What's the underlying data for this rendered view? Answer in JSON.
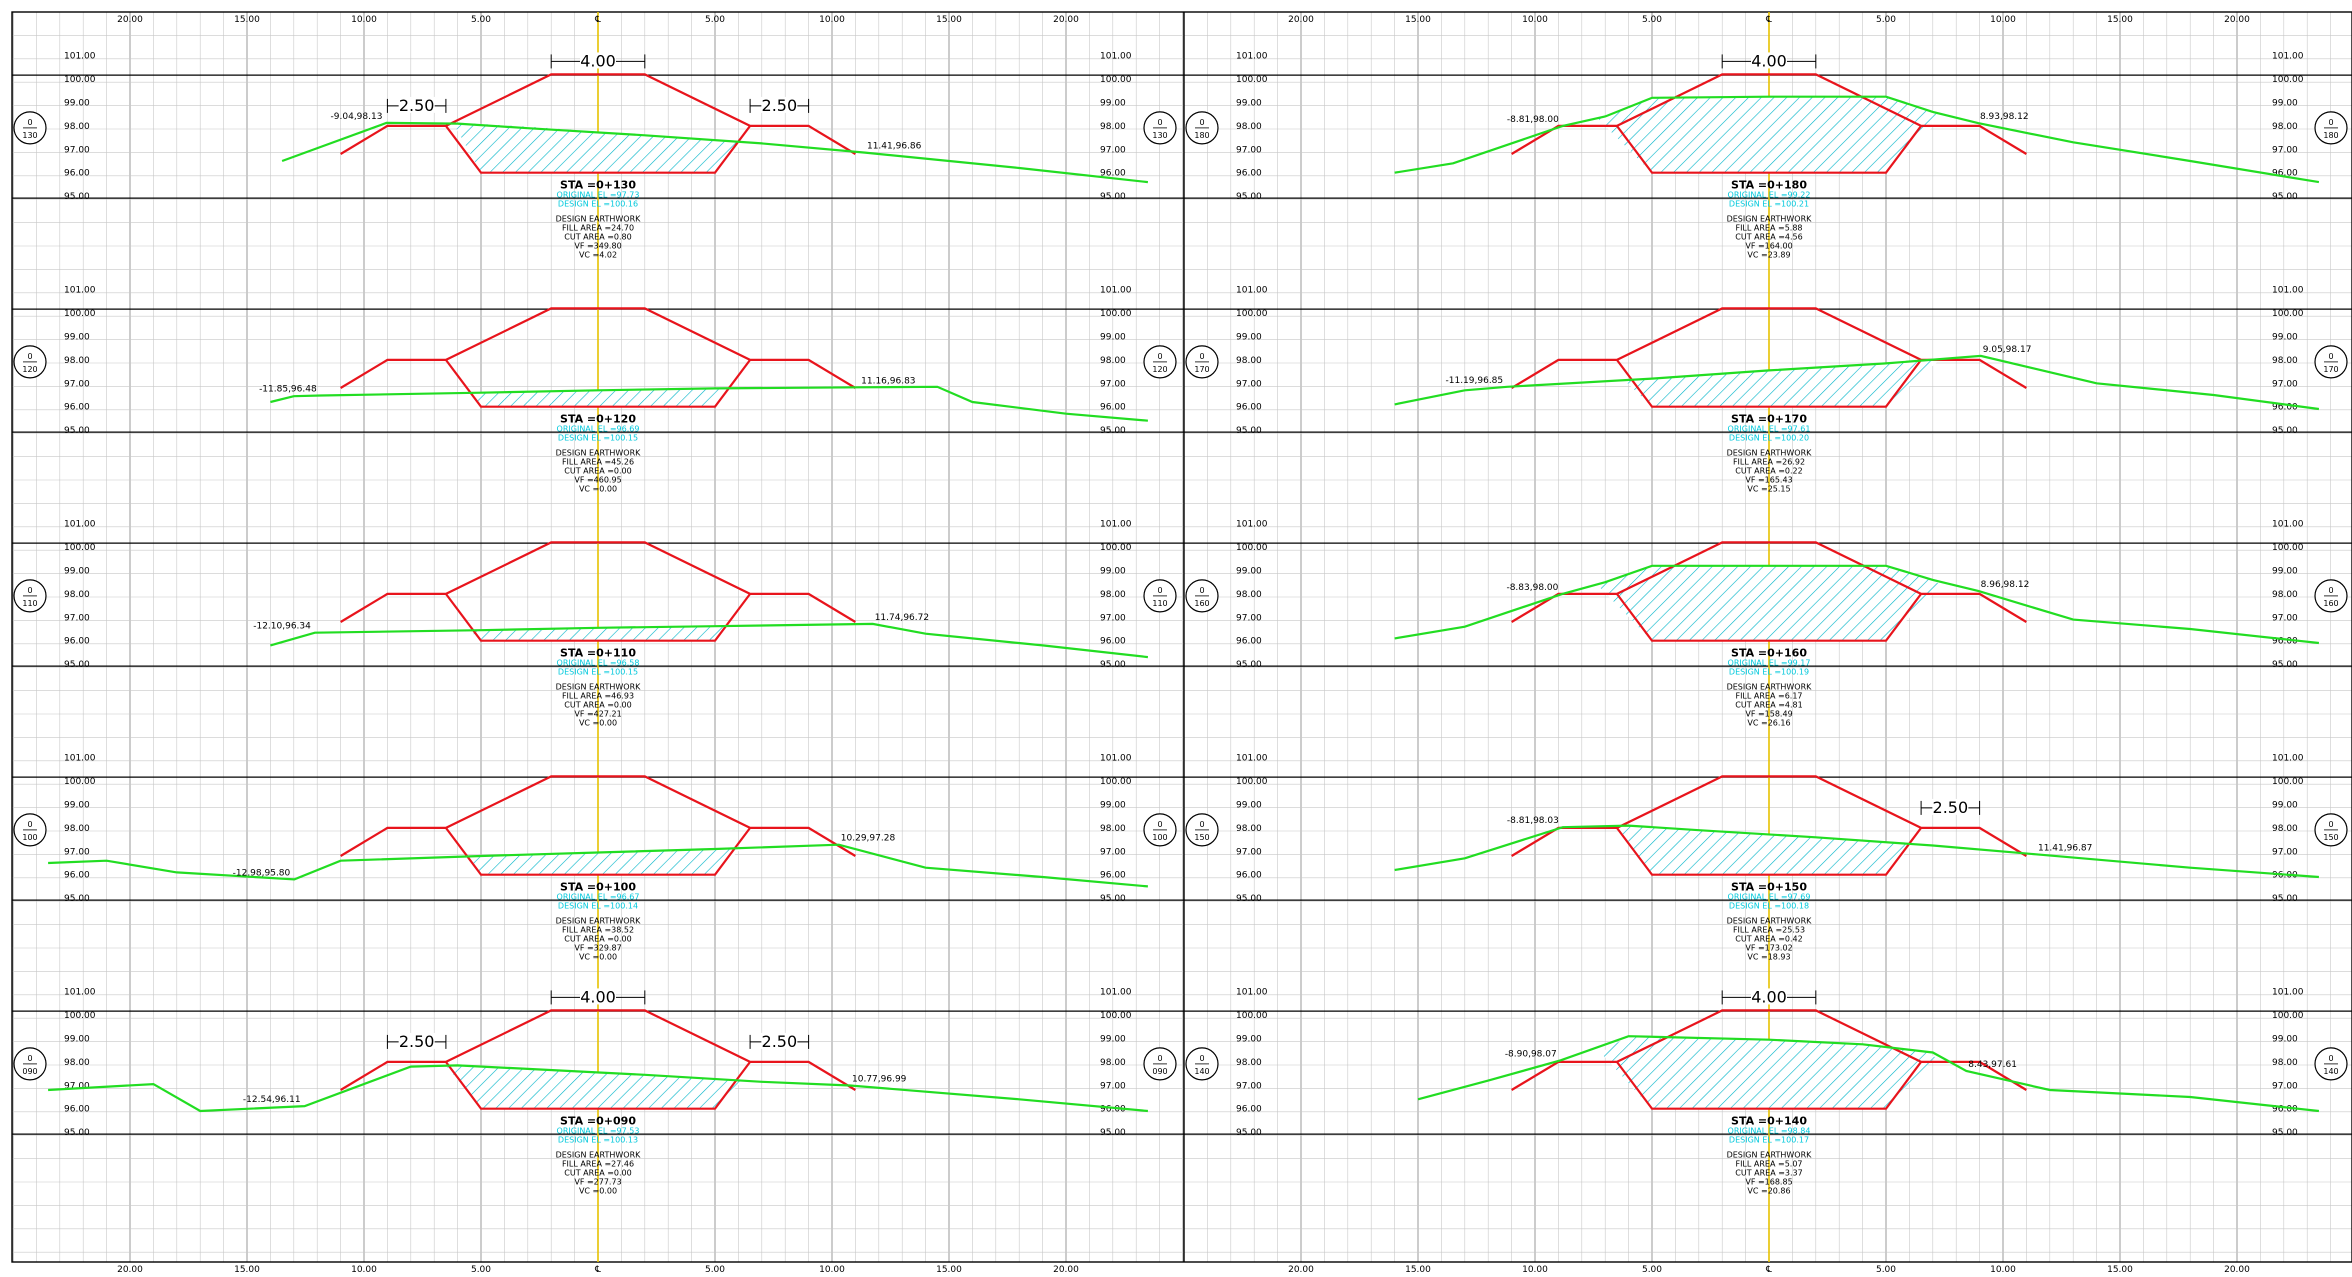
{
  "axis": {
    "x_ticks": [
      {
        "v": -20,
        "label": "20.00"
      },
      {
        "v": -15,
        "label": "15.00"
      },
      {
        "v": -10,
        "label": "10.00"
      },
      {
        "v": -5,
        "label": "5.00"
      },
      {
        "v": 0,
        "label": "℄"
      },
      {
        "v": 5,
        "label": "5.00"
      },
      {
        "v": 10,
        "label": "10.00"
      },
      {
        "v": 15,
        "label": "15.00"
      },
      {
        "v": 20,
        "label": "20.00"
      }
    ],
    "elevation_labels": [
      "101.00",
      "100.00",
      "99.00",
      "98.00",
      "97.00",
      "96.00",
      "95.00"
    ]
  },
  "dimension_labels": {
    "crest": "4.00",
    "berm": "2.50"
  },
  "earthwork_heading": "DESIGN EARTHWORK",
  "colors": {
    "grid": "#c8c8c8",
    "frame": "#000000",
    "design": "#e8141c",
    "ground": "#22dd22",
    "centerline": "#e6c200",
    "hatch": "#00b4c8",
    "elev_text": "#00c8dc"
  },
  "sections": [
    {
      "col": 0,
      "row": 0,
      "sta": "STA =0+130",
      "station_bubble": {
        "top": "0",
        "bottom": "130"
      },
      "original_el": "ORIGINAL EL =97.73",
      "design_el": "DESIGN EL =100.16",
      "fill_area": "FILL AREA =24.70",
      "cut_area": "CUT AREA =0.80",
      "vf": "VF =349.80",
      "vc": "VC =4.02",
      "left_daylight": {
        "text": "-9.04,98.13",
        "x": -9.04,
        "y": 98.13
      },
      "right_daylight": {
        "text": "11.41,96.86",
        "x": 11.41,
        "y": 96.86
      },
      "show_crest_dim": true,
      "show_left_berm_dim": true,
      "show_right_berm_dim": true,
      "ground": [
        [
          -13.5,
          96.5
        ],
        [
          -9.04,
          98.13
        ],
        [
          -6,
          98.1
        ],
        [
          -3,
          97.9
        ],
        [
          2,
          97.6
        ],
        [
          7,
          97.25
        ],
        [
          11.41,
          96.86
        ],
        [
          18,
          96.2
        ],
        [
          23.5,
          95.6
        ]
      ],
      "fill": [
        [
          -6.2,
          98.15
        ],
        [
          -2.6,
          97.95
        ],
        [
          0.5,
          97.7
        ],
        [
          3.2,
          97.5
        ],
        [
          6.2,
          97.3
        ],
        [
          5,
          96
        ],
        [
          -5,
          96
        ]
      ]
    },
    {
      "col": 0,
      "row": 1,
      "sta": "STA =0+120",
      "station_bubble": {
        "top": "0",
        "bottom": "120"
      },
      "original_el": "ORIGINAL EL =96.69",
      "design_el": "DESIGN EL =100.15",
      "fill_area": "FILL AREA =45.26",
      "cut_area": "CUT AREA =0.00",
      "vf": "VF =460.95",
      "vc": "VC =0.00",
      "left_daylight": {
        "text": "-11.85,96.48",
        "x": -11.85,
        "y": 96.48
      },
      "right_daylight": {
        "text": "11.16,96.83",
        "x": 11.16,
        "y": 96.83
      },
      "show_crest_dim": false,
      "show_left_berm_dim": false,
      "show_right_berm_dim": false,
      "ground": [
        [
          -14,
          96.2
        ],
        [
          -13,
          96.45
        ],
        [
          -11.85,
          96.48
        ],
        [
          -5,
          96.6
        ],
        [
          0,
          96.7
        ],
        [
          5,
          96.78
        ],
        [
          11.16,
          96.83
        ],
        [
          14.5,
          96.85
        ],
        [
          16,
          96.2
        ],
        [
          20,
          95.7
        ],
        [
          23.5,
          95.4
        ]
      ],
      "fill": [
        [
          -5.5,
          96.6
        ],
        [
          0,
          96.7
        ],
        [
          5.6,
          96.78
        ],
        [
          5,
          96
        ],
        [
          -5,
          96
        ]
      ]
    },
    {
      "col": 0,
      "row": 2,
      "sta": "STA =0+110",
      "station_bubble": {
        "top": "0",
        "bottom": "110"
      },
      "original_el": "ORIGINAL EL =96.58",
      "design_el": "DESIGN EL =100.15",
      "fill_area": "FILL AREA =46.93",
      "cut_area": "CUT AREA =0.00",
      "vf": "VF =427.21",
      "vc": "VC =0.00",
      "left_daylight": {
        "text": "-12.10,96.34",
        "x": -12.1,
        "y": 96.34
      },
      "right_daylight": {
        "text": "11.74,96.72",
        "x": 11.74,
        "y": 96.72
      },
      "show_crest_dim": false,
      "show_left_berm_dim": false,
      "show_right_berm_dim": false,
      "ground": [
        [
          -14,
          95.8
        ],
        [
          -12.1,
          96.34
        ],
        [
          -5,
          96.45
        ],
        [
          0,
          96.55
        ],
        [
          5,
          96.62
        ],
        [
          11.74,
          96.72
        ],
        [
          14,
          96.3
        ],
        [
          19,
          95.8
        ],
        [
          23.5,
          95.3
        ]
      ],
      "fill": [
        [
          -5.5,
          96.45
        ],
        [
          0,
          96.55
        ],
        [
          5.6,
          96.62
        ],
        [
          5,
          96
        ],
        [
          -5,
          96
        ]
      ]
    },
    {
      "col": 0,
      "row": 3,
      "sta": "STA =0+100",
      "station_bubble": {
        "top": "0",
        "bottom": "100"
      },
      "original_el": "ORIGINAL EL =96.67",
      "design_el": "DESIGN EL =100.14",
      "fill_area": "FILL AREA =38.52",
      "cut_area": "CUT AREA =0.00",
      "vf": "VF =329.87",
      "vc": "VC =0.00",
      "left_daylight": {
        "text": "-12.98,95.80",
        "x": -12.98,
        "y": 95.8
      },
      "right_daylight": {
        "text": "10.29,97.28",
        "x": 10.29,
        "y": 97.28
      },
      "show_crest_dim": false,
      "show_left_berm_dim": false,
      "show_right_berm_dim": false,
      "ground": [
        [
          -23.5,
          96.5
        ],
        [
          -21,
          96.6
        ],
        [
          -18,
          96.1
        ],
        [
          -12.98,
          95.8
        ],
        [
          -11,
          96.6
        ],
        [
          -5,
          96.8
        ],
        [
          0,
          96.95
        ],
        [
          5,
          97.1
        ],
        [
          10.29,
          97.28
        ],
        [
          14,
          96.3
        ],
        [
          19,
          95.9
        ],
        [
          23.5,
          95.5
        ]
      ],
      "fill": [
        [
          -5.5,
          96.78
        ],
        [
          0,
          96.95
        ],
        [
          6.1,
          97.12
        ],
        [
          5,
          96
        ],
        [
          -5,
          96
        ]
      ]
    },
    {
      "col": 0,
      "row": 4,
      "sta": "STA =0+090",
      "station_bubble": {
        "top": "0",
        "bottom": "090"
      },
      "original_el": "ORIGINAL EL =97.53",
      "design_el": "DESIGN EL =100.13",
      "fill_area": "FILL AREA =27.46",
      "cut_area": "CUT AREA =0.00",
      "vf": "VF =277.73",
      "vc": "VC =0.00",
      "left_daylight": {
        "text": "-12.54,96.11",
        "x": -12.54,
        "y": 96.11
      },
      "right_daylight": {
        "text": "10.77,96.99",
        "x": 10.77,
        "y": 96.99
      },
      "show_crest_dim": true,
      "show_left_berm_dim": true,
      "show_right_berm_dim": true,
      "ground": [
        [
          -23.5,
          96.8
        ],
        [
          -19,
          97.05
        ],
        [
          -17,
          95.9
        ],
        [
          -12.54,
          96.11
        ],
        [
          -8,
          97.8
        ],
        [
          -6,
          97.85
        ],
        [
          -3,
          97.7
        ],
        [
          2,
          97.45
        ],
        [
          7,
          97.15
        ],
        [
          10.77,
          96.99
        ],
        [
          18,
          96.4
        ],
        [
          23.5,
          95.9
        ]
      ],
      "fill": [
        [
          -6.5,
          97.85
        ],
        [
          -2.5,
          97.68
        ],
        [
          1,
          97.5
        ],
        [
          3.8,
          97.35
        ],
        [
          6.2,
          97.22
        ],
        [
          5,
          96
        ],
        [
          -5,
          96
        ]
      ]
    },
    {
      "col": 1,
      "row": 0,
      "sta": "STA =0+180",
      "station_bubble": {
        "top": "0",
        "bottom": "180"
      },
      "original_el": "ORIGINAL EL =99.22",
      "design_el": "DESIGN EL =100.21",
      "fill_area": "FILL AREA =5.88",
      "cut_area": "CUT AREA =4.56",
      "vf": "VF =164.00",
      "vc": "VC =23.89",
      "left_daylight": {
        "text": "-8.81,98.00",
        "x": -8.81,
        "y": 98.0
      },
      "right_daylight": {
        "text": "8.93,98.12",
        "x": 8.93,
        "y": 98.12
      },
      "show_crest_dim": true,
      "show_left_berm_dim": false,
      "show_right_berm_dim": false,
      "ground": [
        [
          -16,
          96.0
        ],
        [
          -13.5,
          96.4
        ],
        [
          -8.81,
          98.0
        ],
        [
          -7,
          98.4
        ],
        [
          -5,
          99.2
        ],
        [
          0,
          99.25
        ],
        [
          5,
          99.25
        ],
        [
          7,
          98.6
        ],
        [
          8.93,
          98.12
        ],
        [
          13,
          97.3
        ],
        [
          18,
          96.5
        ],
        [
          23.5,
          95.6
        ]
      ],
      "fill": [
        [
          -7.3,
          98.3
        ],
        [
          -5,
          99.2
        ],
        [
          0,
          99.25
        ],
        [
          5,
          99.25
        ],
        [
          7,
          98.6
        ],
        [
          7.4,
          98.35
        ],
        [
          5,
          96
        ],
        [
          -5,
          96
        ]
      ]
    },
    {
      "col": 1,
      "row": 1,
      "sta": "STA =0+170",
      "station_bubble": {
        "top": "0",
        "bottom": "170"
      },
      "original_el": "ORIGINAL EL =97.61",
      "design_el": "DESIGN EL =100.20",
      "fill_area": "FILL AREA =26.92",
      "cut_area": "CUT AREA =0.22",
      "vf": "VF =165.43",
      "vc": "VC =25.15",
      "left_daylight": {
        "text": "-11.19,96.85",
        "x": -11.19,
        "y": 96.85
      },
      "right_daylight": {
        "text": "9.05,98.17",
        "x": 9.05,
        "y": 98.17
      },
      "show_crest_dim": false,
      "show_left_berm_dim": false,
      "show_right_berm_dim": false,
      "ground": [
        [
          -16,
          96.1
        ],
        [
          -13,
          96.7
        ],
        [
          -11.19,
          96.85
        ],
        [
          -5,
          97.2
        ],
        [
          0,
          97.55
        ],
        [
          5,
          97.85
        ],
        [
          9.05,
          98.17
        ],
        [
          14,
          97.0
        ],
        [
          19,
          96.5
        ],
        [
          23.5,
          95.9
        ]
      ],
      "fill": [
        [
          -6.2,
          97.15
        ],
        [
          0,
          97.55
        ],
        [
          6.5,
          97.95
        ],
        [
          7.3,
          98.0
        ],
        [
          5,
          96
        ],
        [
          -5,
          96
        ]
      ]
    },
    {
      "col": 1,
      "row": 2,
      "sta": "STA =0+160",
      "station_bubble": {
        "top": "0",
        "bottom": "160"
      },
      "original_el": "ORIGINAL EL =99.17",
      "design_el": "DESIGN EL =100.19",
      "fill_area": "FILL AREA =6.17",
      "cut_area": "CUT AREA =4.81",
      "vf": "VF =158.49",
      "vc": "VC =26.16",
      "left_daylight": {
        "text": "-8.83,98.00",
        "x": -8.83,
        "y": 98.0
      },
      "right_daylight": {
        "text": "8.96,98.12",
        "x": 8.96,
        "y": 98.12
      },
      "show_crest_dim": false,
      "show_left_berm_dim": false,
      "show_right_berm_dim": false,
      "ground": [
        [
          -16,
          96.1
        ],
        [
          -13,
          96.6
        ],
        [
          -8.83,
          98.0
        ],
        [
          -7,
          98.5
        ],
        [
          -5,
          99.2
        ],
        [
          0,
          99.2
        ],
        [
          5,
          99.2
        ],
        [
          7,
          98.6
        ],
        [
          8.96,
          98.12
        ],
        [
          13,
          96.9
        ],
        [
          18,
          96.5
        ],
        [
          23.5,
          95.9
        ]
      ],
      "fill": [
        [
          -7.3,
          98.35
        ],
        [
          -5,
          99.2
        ],
        [
          0,
          99.2
        ],
        [
          5,
          99.2
        ],
        [
          7,
          98.6
        ],
        [
          7.4,
          98.35
        ],
        [
          5,
          96
        ],
        [
          -5,
          96
        ]
      ]
    },
    {
      "col": 1,
      "row": 3,
      "sta": "STA =0+150",
      "station_bubble": {
        "top": "0",
        "bottom": "150"
      },
      "original_el": "ORIGINAL EL =97.69",
      "design_el": "DESIGN EL =100.18",
      "fill_area": "FILL AREA =25.53",
      "cut_area": "CUT AREA =0.42",
      "vf": "VF =173.02",
      "vc": "VC =18.93",
      "left_daylight": {
        "text": "-8.81,98.03",
        "x": -8.81,
        "y": 98.03
      },
      "right_daylight": {
        "text": "11.41,96.87",
        "x": 11.41,
        "y": 96.87
      },
      "show_crest_dim": false,
      "show_left_berm_dim": false,
      "show_right_berm_dim": true,
      "ground": [
        [
          -16,
          96.2
        ],
        [
          -13,
          96.7
        ],
        [
          -8.81,
          98.03
        ],
        [
          -6,
          98.1
        ],
        [
          -3,
          97.9
        ],
        [
          2,
          97.6
        ],
        [
          7,
          97.25
        ],
        [
          11.41,
          96.87
        ],
        [
          18,
          96.3
        ],
        [
          23.5,
          95.9
        ]
      ],
      "fill": [
        [
          -6.5,
          98.1
        ],
        [
          -3,
          97.9
        ],
        [
          0.5,
          97.7
        ],
        [
          3.5,
          97.5
        ],
        [
          6.2,
          97.35
        ],
        [
          5,
          96
        ],
        [
          -5,
          96
        ]
      ]
    },
    {
      "col": 1,
      "row": 4,
      "sta": "STA =0+140",
      "station_bubble": {
        "top": "0",
        "bottom": "140"
      },
      "original_el": "ORIGINAL EL =98.84",
      "design_el": "DESIGN EL =100.17",
      "fill_area": "FILL AREA =5.07",
      "cut_area": "CUT AREA =3.37",
      "vf": "VF =168.85",
      "vc": "VC =20.86",
      "left_daylight": {
        "text": "-8.90,98.07",
        "x": -8.9,
        "y": 98.07
      },
      "right_daylight": {
        "text": "8.43,97.61",
        "x": 8.43,
        "y": 97.61
      },
      "show_crest_dim": true,
      "show_left_berm_dim": false,
      "show_right_berm_dim": false,
      "ground": [
        [
          -15,
          96.4
        ],
        [
          -12,
          97.2
        ],
        [
          -8.9,
          98.07
        ],
        [
          -6,
          99.1
        ],
        [
          0,
          98.95
        ],
        [
          4,
          98.75
        ],
        [
          7,
          98.4
        ],
        [
          8.43,
          97.61
        ],
        [
          12,
          96.8
        ],
        [
          18,
          96.5
        ],
        [
          23.5,
          95.9
        ]
      ],
      "fill": [
        [
          -7.2,
          98.4
        ],
        [
          -6,
          99.1
        ],
        [
          0,
          98.95
        ],
        [
          4,
          98.75
        ],
        [
          6.8,
          98.4
        ],
        [
          7.1,
          98.2
        ],
        [
          5,
          96
        ],
        [
          -5,
          96
        ]
      ]
    }
  ]
}
